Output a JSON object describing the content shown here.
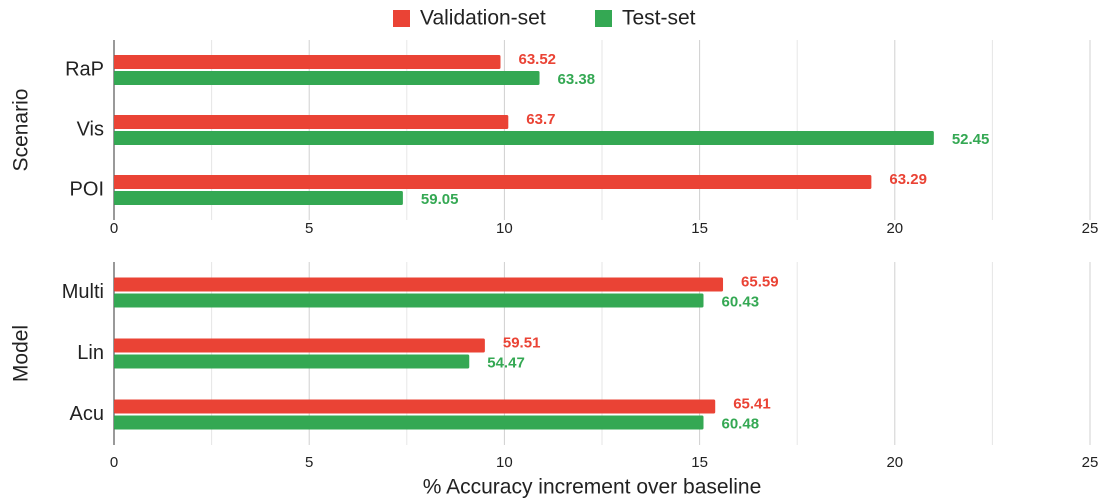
{
  "chart_data": [
    {
      "type": "bar",
      "orientation": "horizontal",
      "ylabel": "Scenario",
      "categories": [
        "RaP",
        "Vis",
        "POI"
      ],
      "series": [
        {
          "name": "Validation-set",
          "color": "#ea4335",
          "values": [
            9.9,
            10.1,
            19.4
          ],
          "data_labels": [
            63.52,
            63.7,
            63.29
          ]
        },
        {
          "name": "Test-set",
          "color": "#34a853",
          "values": [
            10.9,
            21.0,
            7.4
          ],
          "data_labels": [
            63.38,
            52.45,
            59.05
          ]
        }
      ],
      "xlim": [
        0,
        25
      ],
      "xticks": [
        0,
        5,
        10,
        15,
        20,
        25
      ],
      "minor_xticks": [
        2.5,
        7.5,
        12.5,
        17.5,
        22.5
      ],
      "grid": true
    },
    {
      "type": "bar",
      "orientation": "horizontal",
      "ylabel": "Model",
      "xlabel": "% Accuracy increment over baseline",
      "categories": [
        "Multi",
        "Lin",
        "Acu"
      ],
      "series": [
        {
          "name": "Validation-set",
          "color": "#ea4335",
          "values": [
            15.6,
            9.5,
            15.4
          ],
          "data_labels": [
            65.59,
            59.51,
            65.41
          ]
        },
        {
          "name": "Test-set",
          "color": "#34a853",
          "values": [
            15.1,
            9.1,
            15.1
          ],
          "data_labels": [
            60.43,
            54.47,
            60.48
          ]
        }
      ],
      "xlim": [
        0,
        25
      ],
      "xticks": [
        0,
        5,
        10,
        15,
        20,
        25
      ],
      "minor_xticks": [
        2.5,
        7.5,
        12.5,
        17.5,
        22.5
      ],
      "grid": true
    }
  ]
}
